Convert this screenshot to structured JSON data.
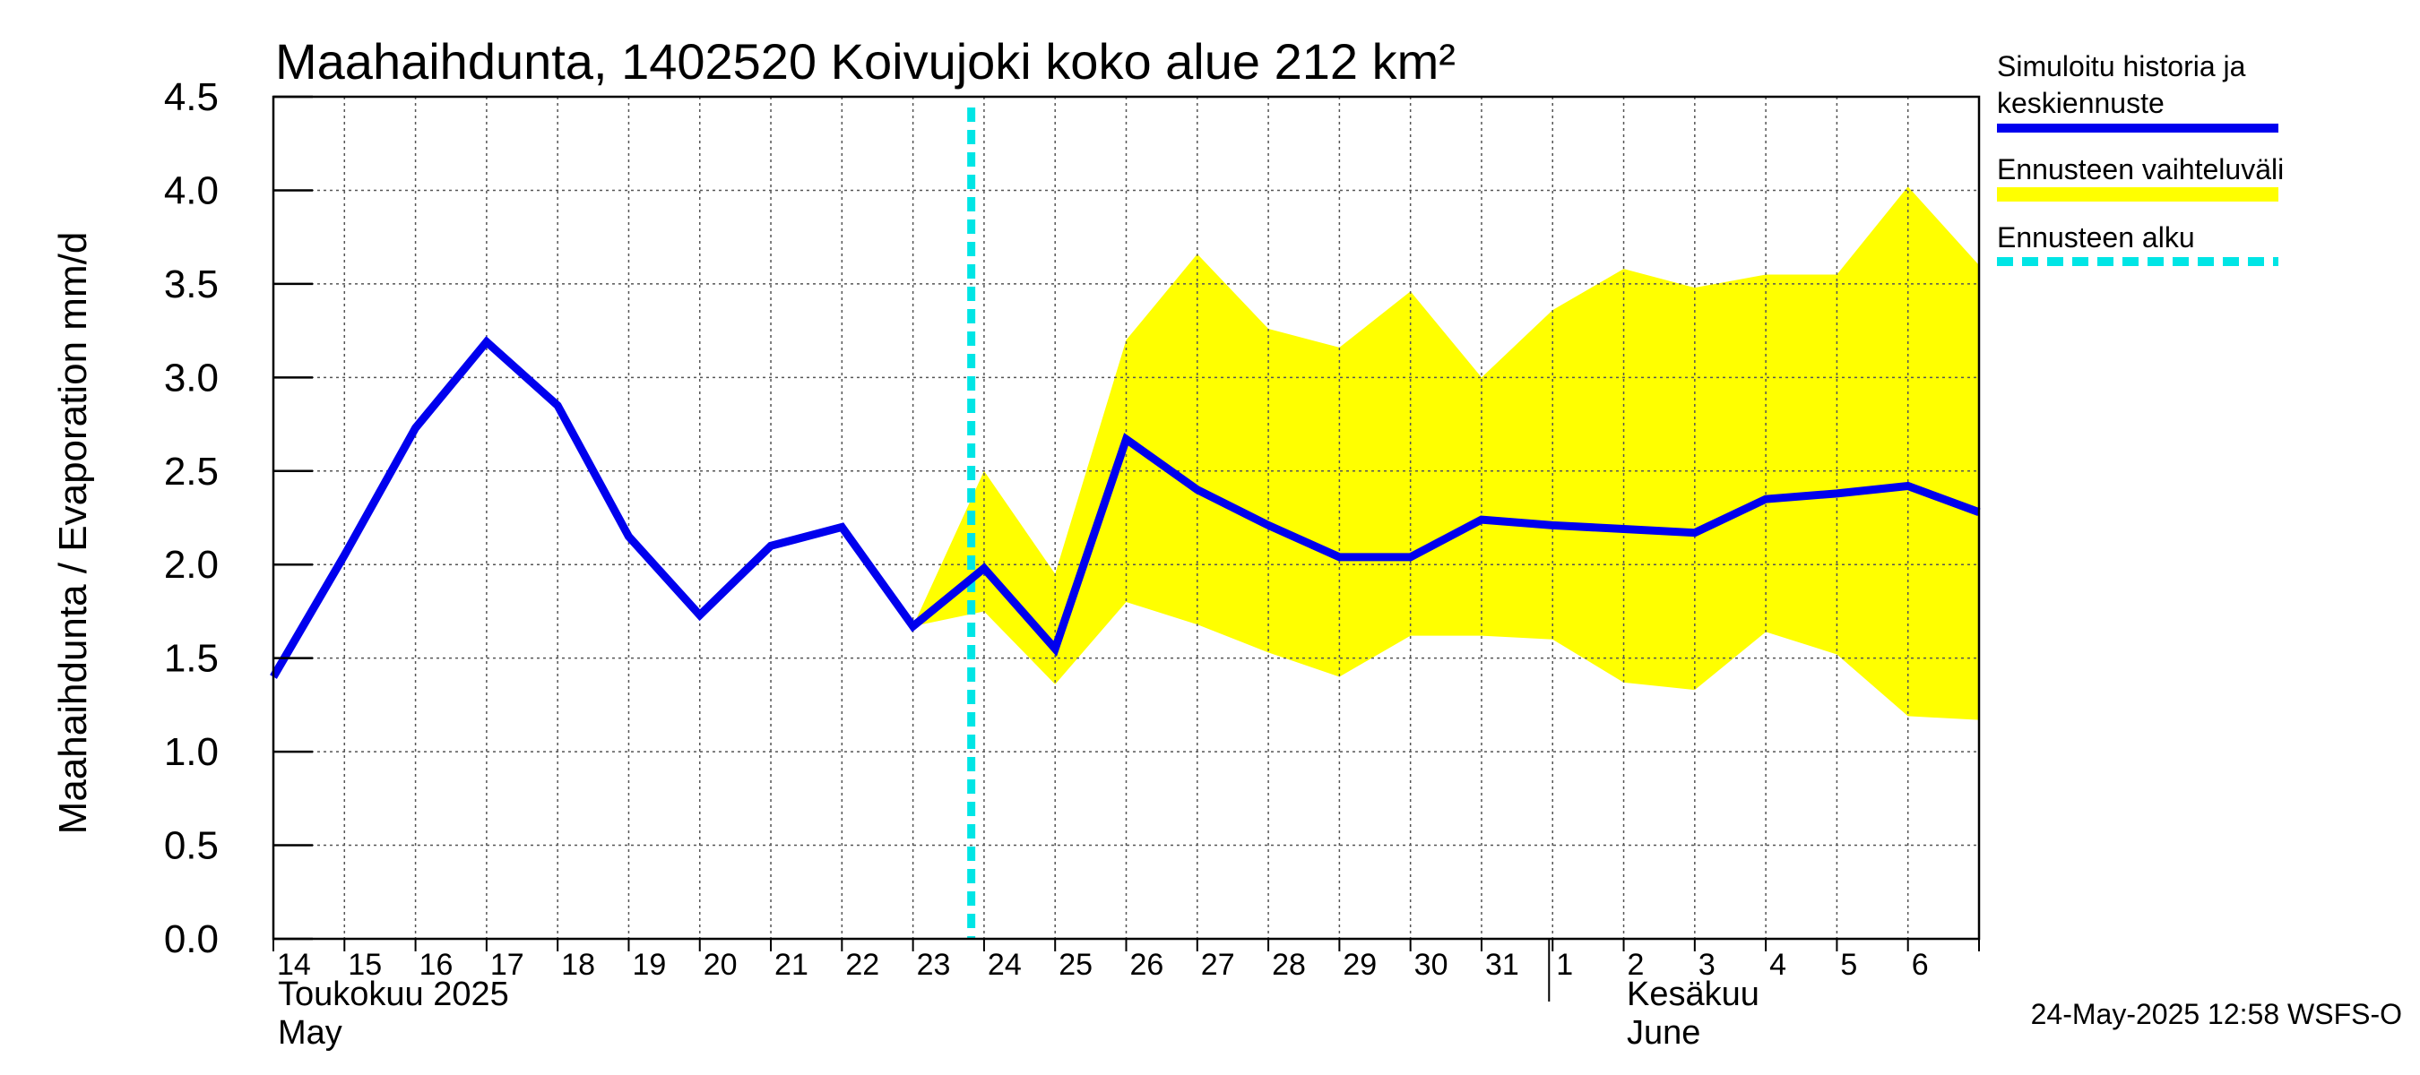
{
  "chart_data": {
    "type": "line",
    "title": "Maahaihdunta, 1402520 Koivujoki koko alue 212 km²",
    "ylabel": "Maahaihdunta / Evaporation   mm/d",
    "ylim": [
      0,
      4.5
    ],
    "yticks": [
      "0.0",
      "0.5",
      "1.0",
      "1.5",
      "2.0",
      "2.5",
      "3.0",
      "3.5",
      "4.0",
      "4.5"
    ],
    "x": [
      "2025-05-14",
      "2025-05-15",
      "2025-05-16",
      "2025-05-17",
      "2025-05-18",
      "2025-05-19",
      "2025-05-20",
      "2025-05-21",
      "2025-05-22",
      "2025-05-23",
      "2025-05-24",
      "2025-05-25",
      "2025-05-26",
      "2025-05-27",
      "2025-05-28",
      "2025-05-29",
      "2025-05-30",
      "2025-05-31",
      "2025-06-01",
      "2025-06-02",
      "2025-06-03",
      "2025-06-04",
      "2025-06-05",
      "2025-06-06",
      "2025-06-07"
    ],
    "xtick_labels": [
      "14",
      "15",
      "16",
      "17",
      "18",
      "19",
      "20",
      "21",
      "22",
      "23",
      "24",
      "25",
      "26",
      "27",
      "28",
      "29",
      "30",
      "31",
      "1",
      "2",
      "3",
      "4",
      "5",
      "6"
    ],
    "month_labels": [
      {
        "line1": "Toukokuu  2025",
        "line2": "May"
      },
      {
        "line1": "Kesäkuu",
        "line2": "June"
      }
    ],
    "series": [
      {
        "name": "Simuloitu historia ja keskiennuste",
        "color": "#0000ee",
        "values": [
          1.4,
          2.05,
          2.73,
          3.19,
          2.85,
          2.15,
          1.73,
          2.1,
          2.2,
          1.67,
          1.98,
          1.55,
          2.67,
          2.4,
          2.21,
          2.04,
          2.04,
          2.24,
          2.21,
          2.19,
          2.17,
          2.35,
          2.38,
          2.42,
          2.28
        ]
      }
    ],
    "band": {
      "name": "Ennusteen vaihteluväli",
      "color": "#ffff00",
      "x_start_index": 9,
      "upper": [
        1.67,
        2.5,
        1.95,
        3.2,
        3.66,
        3.26,
        3.16,
        3.46,
        3.0,
        3.36,
        3.58,
        3.48,
        3.55,
        3.55,
        4.02,
        3.6
      ],
      "lower": [
        1.67,
        1.75,
        1.36,
        1.8,
        1.68,
        1.53,
        1.4,
        1.62,
        1.62,
        1.6,
        1.37,
        1.33,
        1.64,
        1.52,
        1.19,
        1.17
      ]
    },
    "forecast_start": {
      "name": "Ennusteen alku",
      "color": "#00e5e5",
      "x_index": 10
    },
    "grid": true,
    "legend_position": "right"
  },
  "legend": {
    "items": [
      {
        "line1": "Simuloitu historia ja",
        "line2": "keskiennuste"
      },
      {
        "line1": "Ennusteen vaihteluväli",
        "line2": ""
      },
      {
        "line1": "Ennusteen alku",
        "line2": ""
      }
    ]
  },
  "footer": {
    "timestamp": "24-May-2025 12:58 WSFS-O"
  }
}
